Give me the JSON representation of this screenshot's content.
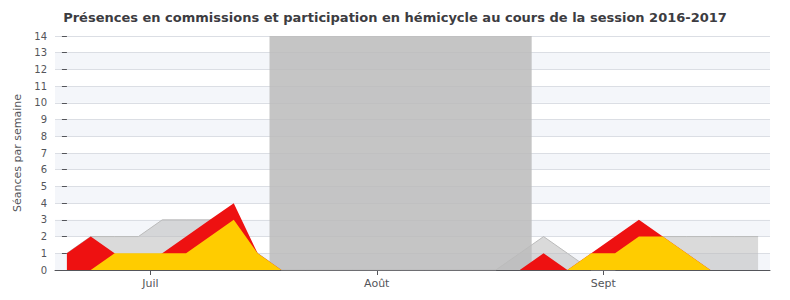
{
  "chart_data": {
    "type": "area",
    "title": "Présences en commissions et participation en hémicycle au cours de la session 2016-2017",
    "ylabel": "Séances par semaine",
    "x": [
      0,
      1,
      2,
      3,
      4,
      5,
      6,
      7,
      8,
      9,
      10,
      11,
      12,
      13,
      14,
      15,
      16,
      17,
      18,
      19,
      20,
      21,
      22,
      23,
      24,
      25,
      26,
      27,
      28,
      29
    ],
    "xlim": [
      -0.5,
      29.5
    ],
    "xticks": [
      {
        "value": 3.5,
        "label": "Juil"
      },
      {
        "value": 13.0,
        "label": "Août"
      },
      {
        "value": 22.5,
        "label": "Sept"
      }
    ],
    "ylim": [
      0,
      14
    ],
    "yticks": [
      0,
      1,
      2,
      3,
      4,
      5,
      6,
      7,
      8,
      9,
      10,
      11,
      12,
      13,
      14
    ],
    "grid": true,
    "shaded": {
      "x": [
        8.5,
        19.5
      ],
      "color": "#bbbbbb"
    },
    "series": [
      {
        "color": "#bbbbbb",
        "values": [
          1,
          2,
          2,
          2,
          3,
          3,
          3,
          3,
          1,
          0,
          0,
          0,
          0,
          0,
          0,
          0,
          0,
          0,
          0,
          1,
          2,
          1,
          0,
          0,
          1,
          2,
          2,
          2,
          2,
          2
        ]
      },
      {
        "color": "#ee1111",
        "values": [
          1,
          2,
          1,
          0,
          1,
          2,
          3,
          4,
          1,
          0,
          0,
          0,
          0,
          0,
          0,
          0,
          0,
          0,
          0,
          0,
          1,
          0,
          1,
          2,
          3,
          2,
          1,
          0,
          0,
          0
        ]
      },
      {
        "color": "#ffcc00",
        "values": [
          0,
          0,
          1,
          1,
          1,
          1,
          2,
          3,
          1,
          0,
          0,
          0,
          0,
          0,
          0,
          0,
          0,
          0,
          0,
          0,
          0,
          0,
          1,
          1,
          2,
          2,
          1,
          0,
          0,
          0
        ]
      }
    ]
  }
}
